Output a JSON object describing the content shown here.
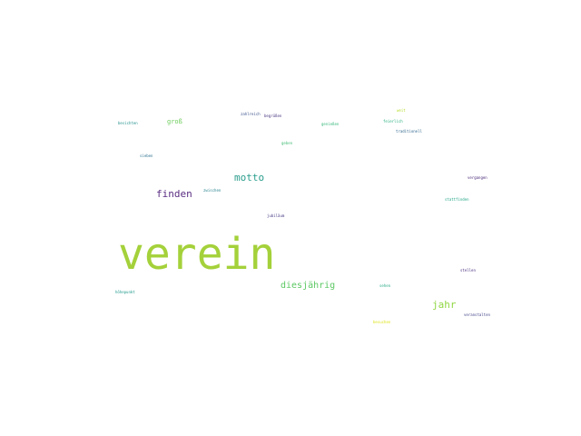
{
  "words": [
    {
      "text": "verein",
      "color": "#a4d13a"
    },
    {
      "text": "motto",
      "color": "#2a9d8c"
    },
    {
      "text": "finden",
      "color": "#5a2d82"
    },
    {
      "text": "diesjährig",
      "color": "#5cc863"
    },
    {
      "text": "jahr",
      "color": "#90d743"
    },
    {
      "text": "groß",
      "color": "#6ccd5a"
    },
    {
      "text": "zahlreich",
      "color": "#3b528b"
    },
    {
      "text": "begrüßen",
      "color": "#46327e"
    },
    {
      "text": "genießen",
      "color": "#35b779"
    },
    {
      "text": "weit",
      "color": "#b5de2b"
    },
    {
      "text": "feierlich",
      "color": "#2ab07f"
    },
    {
      "text": "traditionell",
      "color": "#31688e"
    },
    {
      "text": "besichten",
      "color": "#21918c"
    },
    {
      "text": "geben",
      "color": "#3fbc73"
    },
    {
      "text": "sieben",
      "color": "#2c728e"
    },
    {
      "text": "vergangen",
      "color": "#482878"
    },
    {
      "text": "stattfinden",
      "color": "#20a486"
    },
    {
      "text": "zwischen",
      "color": "#26828e"
    },
    {
      "text": "jubiläum",
      "color": "#443983"
    },
    {
      "text": "stellen",
      "color": "#472d7b"
    },
    {
      "text": "höhepunkt",
      "color": "#1f998a"
    },
    {
      "text": "sehen",
      "color": "#22a884"
    },
    {
      "text": "veranstalten",
      "color": "#414487"
    },
    {
      "text": "besuchen",
      "color": "#dde318"
    }
  ]
}
